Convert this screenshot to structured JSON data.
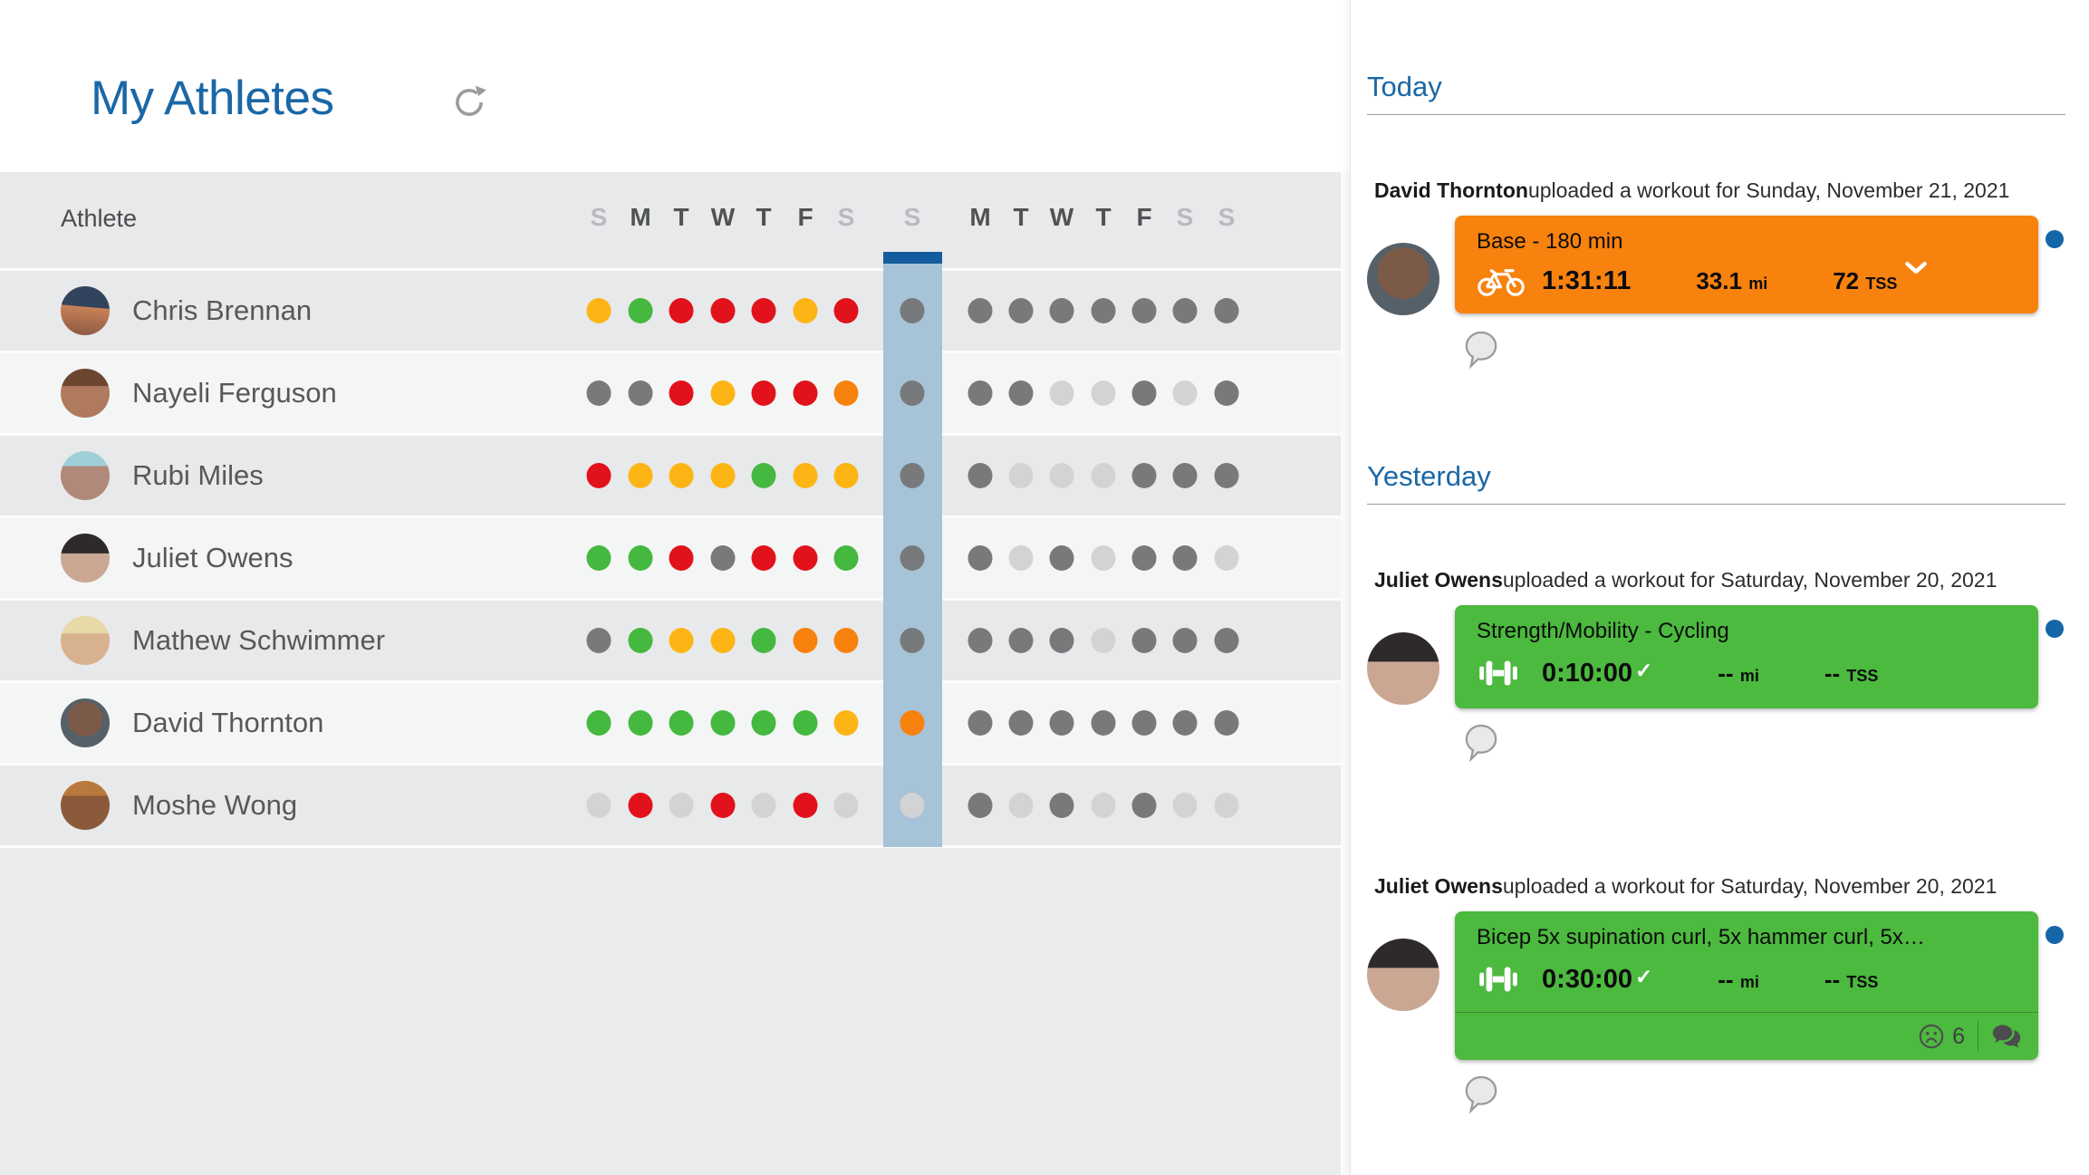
{
  "app": {
    "title": "My Athletes"
  },
  "icons": {
    "refresh": "refresh-icon",
    "bike": "bike-icon",
    "strength": "dumbbell-icon",
    "comment": "comment-bubble-icon",
    "sad_face": "sad-face-icon",
    "chat": "chat-icon",
    "chevron": "chevron-down-icon",
    "check": "check-icon"
  },
  "colors": {
    "accent_blue": "#1a67a6",
    "card_orange": "#f8820e",
    "card_green": "#4cb93f",
    "dot_yellow": "#fdb515",
    "dot_green": "#44b83f",
    "dot_red": "#e1121b",
    "dot_orange": "#f8820e",
    "dot_gray": "#77797b",
    "dot_light": "#d2d3d5",
    "column_highlight": "#a6c3d8",
    "column_highlight_bar": "#135d9e",
    "unread_dot": "#1566a8"
  },
  "table": {
    "athlete_header": "Athlete",
    "days": [
      {
        "label": "S",
        "muted": true
      },
      {
        "label": "M",
        "muted": false
      },
      {
        "label": "T",
        "muted": false
      },
      {
        "label": "W",
        "muted": false
      },
      {
        "label": "T",
        "muted": false
      },
      {
        "label": "F",
        "muted": false
      },
      {
        "label": "S",
        "muted": true
      },
      {
        "label": "S",
        "muted": true,
        "today": true
      },
      {
        "label": "M",
        "muted": false
      },
      {
        "label": "T",
        "muted": false
      },
      {
        "label": "W",
        "muted": false
      },
      {
        "label": "T",
        "muted": false
      },
      {
        "label": "F",
        "muted": false
      },
      {
        "label": "S",
        "muted": true
      },
      {
        "label": "S",
        "muted": true
      }
    ],
    "rows": [
      {
        "name": "Chris Brennan",
        "dots": [
          "yellow",
          "green",
          "red",
          "red",
          "red",
          "yellow",
          "red",
          "gray",
          "gray",
          "gray",
          "gray",
          "gray",
          "gray",
          "gray",
          "gray"
        ]
      },
      {
        "name": "Nayeli Ferguson",
        "dots": [
          "gray",
          "gray",
          "red",
          "yellow",
          "red",
          "red",
          "orange",
          "gray",
          "gray",
          "gray",
          "light",
          "light",
          "gray",
          "light",
          "gray"
        ]
      },
      {
        "name": "Rubi Miles",
        "dots": [
          "red",
          "yellow",
          "yellow",
          "yellow",
          "green",
          "yellow",
          "yellow",
          "gray",
          "gray",
          "light",
          "light",
          "light",
          "gray",
          "gray",
          "gray"
        ]
      },
      {
        "name": "Juliet Owens",
        "dots": [
          "green",
          "green",
          "red",
          "gray",
          "red",
          "red",
          "green",
          "gray",
          "gray",
          "light",
          "gray",
          "light",
          "gray",
          "gray",
          "light"
        ]
      },
      {
        "name": "Mathew Schwimmer",
        "dots": [
          "gray",
          "green",
          "yellow",
          "yellow",
          "green",
          "orange",
          "orange",
          "gray",
          "gray",
          "gray",
          "gray",
          "light",
          "gray",
          "gray",
          "gray"
        ]
      },
      {
        "name": "David Thornton",
        "dots": [
          "green",
          "green",
          "green",
          "green",
          "green",
          "green",
          "yellow",
          "orange",
          "gray",
          "gray",
          "gray",
          "gray",
          "gray",
          "gray",
          "gray"
        ]
      },
      {
        "name": "Moshe Wong",
        "dots": [
          "light",
          "red",
          "light",
          "red",
          "light",
          "red",
          "light",
          "light",
          "gray",
          "light",
          "gray",
          "light",
          "gray",
          "light",
          "light"
        ]
      }
    ]
  },
  "feed": {
    "sections": [
      {
        "title": "Today",
        "items": [
          {
            "athlete": "David Thornton",
            "message": "uploaded a workout for Sunday, November 21, 2021",
            "avatar": "david",
            "card": {
              "style": "orange",
              "sport": "bike",
              "title": "Base - 180 min",
              "duration": "1:31:11",
              "completed": false,
              "distance": "33.1",
              "distance_unit": "mi",
              "tss": "72",
              "tss_unit": "TSS",
              "chevron": true,
              "unread": true
            }
          }
        ]
      },
      {
        "title": "Yesterday",
        "items": [
          {
            "athlete": "Juliet Owens",
            "message": "uploaded a workout for Saturday, November 20, 2021",
            "avatar": "juliet",
            "card": {
              "style": "green",
              "sport": "strength",
              "title": "Strength/Mobility - Cycling",
              "duration": "0:10:00",
              "completed": true,
              "distance": "--",
              "distance_unit": "mi",
              "tss": "--",
              "tss_unit": "TSS",
              "chevron": false,
              "unread": true
            }
          },
          {
            "athlete": "Juliet Owens",
            "message": "uploaded a workout for Saturday, November 20, 2021",
            "avatar": "juliet",
            "card": {
              "style": "green",
              "sport": "strength",
              "title": "Bicep 5x supination curl, 5x hammer curl, 5x…",
              "duration": "0:30:00",
              "completed": true,
              "distance": "--",
              "distance_unit": "mi",
              "tss": "--",
              "tss_unit": "TSS",
              "chevron": false,
              "unread": true,
              "footer": {
                "reaction_count": "6"
              }
            }
          }
        ]
      }
    ]
  }
}
